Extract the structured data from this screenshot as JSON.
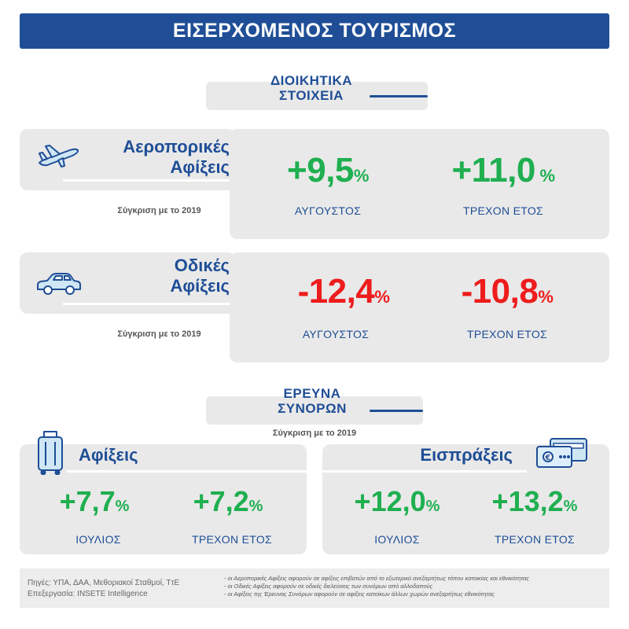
{
  "title": "ΕΙΣΕΡΧΟΜΕΝΟΣ ΤΟΥΡΙΣΜΟΣ",
  "admin": {
    "line1": "ΔΙΟΙΚΗΤΙΚΑ",
    "line2": "ΣΤΟΙΧΕΙΑ",
    "air": {
      "label_line1": "Αεροπορικές",
      "label_line2": "Αφίξεις",
      "compare": "Σύγκριση με το 2019",
      "month_value": "+9,5",
      "month_label": "ΑΥΓΟΥΣΤΟΣ",
      "ytd_value": "+11,0",
      "ytd_label": "ΤΡΕΧΟΝ ΕΤΟΣ",
      "unit": "%"
    },
    "road": {
      "label_line1": "Οδικές",
      "label_line2": "Αφίξεις",
      "compare": "Σύγκριση με το 2019",
      "month_value": "-12,4",
      "month_label": "ΑΥΓΟΥΣΤΟΣ",
      "ytd_value": "-10,8",
      "ytd_label": "ΤΡΕΧΟΝ ΕΤΟΣ",
      "unit": "%"
    }
  },
  "survey": {
    "line1": "ΕΡΕΥΝΑ",
    "line2": "ΣΥΝΟΡΩΝ",
    "compare": "Σύγκριση με το 2019",
    "arrivals": {
      "label": "Αφίξεις",
      "month_value": "+7,7",
      "month_label": "ΙΟΥΛΙΟΣ",
      "ytd_value": "+7,2",
      "ytd_label": "ΤΡΕΧΟΝ ΕΤΟΣ",
      "unit": "%"
    },
    "receipts": {
      "label": "Εισπράξεις",
      "month_value": "+12,0",
      "month_label": "ΙΟΥΛΙΟΣ",
      "ytd_value": "+13,2",
      "ytd_label": "ΤΡΕΧΟΝ ΕΤΟΣ",
      "unit": "%"
    }
  },
  "footer": {
    "sources": "Πηγές:  ΥΠΑ, ΔΑΑ, Μεθοριακοί Σταθμοί, ΤτΕ",
    "processing": "Επεξεργασία:  INSETE Intelligence",
    "notes": [
      "- οι Αεροπορικές Αφίξεις αφορούν σε αφίξεις επιβατών από το εξωτερικό ανεξαρτήτως τόπου κατοικίας και εθνικότητας",
      "- οι Οδικές Αφίξεις αφορούν σε οδικές διελεύσεις των συνόρων από αλλοδαπούς",
      "- οι Αφίξεις της Έρευνας Συνόρων αφορούν σε αφίξεις κατοίκων άλλων χωρών ανεξαρτήτως εθνικότητας"
    ]
  },
  "colors": {
    "brand_blue": "#1f4e96",
    "positive": "#1faf50",
    "negative": "#ee1c1c",
    "panel_gray": "#e9e9e9"
  },
  "icons": [
    "airplane-icon",
    "car-icon",
    "suitcase-icon",
    "credit-card-icon"
  ]
}
